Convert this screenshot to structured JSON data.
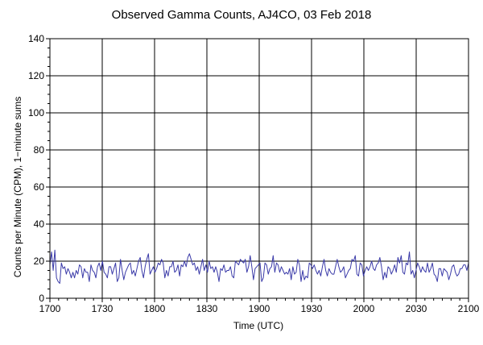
{
  "chart_data": {
    "type": "line",
    "title": "Observed Gamma Counts, AJ4CO, 03 Feb 2018",
    "xlabel": "Time (UTC)",
    "ylabel": "Counts per Minute (CPM), 1−minute sums",
    "x_tick_labels": [
      "1700",
      "1730",
      "1800",
      "1830",
      "1900",
      "1930",
      "2000",
      "2030",
      "2100"
    ],
    "y_tick_labels": [
      "0",
      "20",
      "40",
      "60",
      "80",
      "100",
      "120",
      "140"
    ],
    "xlim_minutes": [
      0,
      240
    ],
    "ylim": [
      0,
      140
    ],
    "grid": true,
    "line_color": "#3a3aa8",
    "series": [
      {
        "values": [
          18,
          25,
          15,
          26,
          11,
          9,
          8,
          19,
          16,
          17,
          13,
          16,
          14,
          11,
          14,
          11,
          15,
          13,
          18,
          17,
          11,
          16,
          14,
          14,
          9,
          18,
          15,
          14,
          11,
          17,
          19,
          15,
          20,
          14,
          13,
          11,
          17,
          17,
          13,
          16,
          19,
          9,
          11,
          21,
          15,
          10,
          14,
          16,
          18,
          19,
          13,
          15,
          12,
          16,
          20,
          22,
          15,
          11,
          17,
          21,
          24,
          13,
          15,
          17,
          14,
          16,
          19,
          18,
          21,
          19,
          11,
          15,
          12,
          17,
          17,
          20,
          14,
          15,
          18,
          12,
          18,
          17,
          20,
          17,
          22,
          24,
          21,
          18,
          19,
          15,
          17,
          13,
          17,
          21,
          15,
          18,
          14,
          20,
          16,
          17,
          14,
          17,
          14,
          9,
          16,
          15,
          18,
          14,
          15,
          15,
          17,
          12,
          11,
          20,
          19,
          18,
          21,
          20,
          19,
          21,
          14,
          17,
          23,
          17,
          10,
          16,
          17,
          18,
          19,
          9,
          11,
          19,
          18,
          13,
          16,
          17,
          23,
          14,
          19,
          18,
          14,
          17,
          15,
          13,
          14,
          13,
          16,
          10,
          17,
          13,
          14,
          21,
          18,
          9,
          15,
          10,
          12,
          11,
          19,
          18,
          16,
          18,
          15,
          13,
          15,
          12,
          17,
          21,
          15,
          12,
          16,
          14,
          13,
          13,
          17,
          21,
          17,
          14,
          15,
          17,
          11,
          13,
          15,
          16,
          21,
          20,
          23,
          13,
          12,
          19,
          18,
          12,
          15,
          17,
          15,
          17,
          20,
          16,
          15,
          18,
          19,
          22,
          17,
          10,
          14,
          11,
          17,
          16,
          13,
          15,
          18,
          14,
          22,
          19,
          23,
          14,
          13,
          19,
          18,
          25,
          13,
          15,
          11,
          15,
          19,
          17,
          14,
          17,
          15,
          14,
          19,
          14,
          16,
          19,
          13,
          12,
          9,
          16,
          16,
          12,
          16,
          15,
          14,
          10,
          13,
          17,
          18,
          14,
          12,
          13,
          16,
          16,
          18,
          18,
          15,
          19
        ]
      }
    ]
  }
}
